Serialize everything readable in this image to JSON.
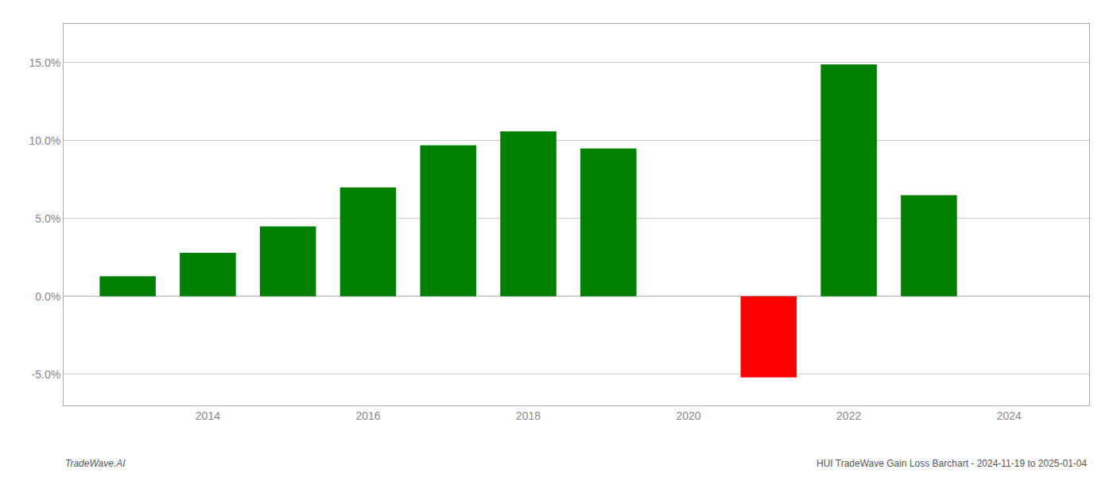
{
  "chart_data": {
    "type": "bar",
    "title": "HUI TradeWave Gain Loss Barchart - 2024-11-19 to 2025-01-04",
    "annotations": [
      "TradeWave.AI"
    ],
    "x": [
      2013,
      2014,
      2015,
      2016,
      2017,
      2018,
      2019,
      2021,
      2022,
      2023
    ],
    "values": [
      1.3,
      2.8,
      4.5,
      7.0,
      9.7,
      10.6,
      9.5,
      -5.2,
      14.9,
      6.5
    ],
    "colors": [
      "#008000",
      "#008000",
      "#008000",
      "#008000",
      "#008000",
      "#008000",
      "#008000",
      "#ff0000",
      "#008000",
      "#008000"
    ],
    "xlim": [
      2012.2,
      2025.0
    ],
    "xticks": [
      2014,
      2016,
      2018,
      2020,
      2022,
      2024
    ],
    "ylim": [
      -7.0,
      17.5
    ],
    "yticks": [
      {
        "value": -5.0,
        "label": "-5.0%"
      },
      {
        "value": 0.0,
        "label": "0.0%"
      },
      {
        "value": 5.0,
        "label": "5.0%"
      },
      {
        "value": 10.0,
        "label": "10.0%"
      },
      {
        "value": 15.0,
        "label": "15.0%"
      }
    ],
    "grid": true
  }
}
